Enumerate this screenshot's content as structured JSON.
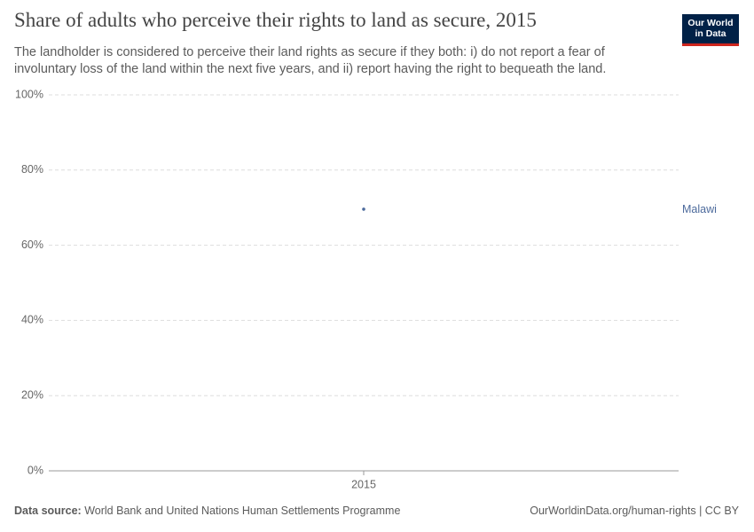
{
  "chart_data": {
    "type": "line",
    "title": "Share of adults who perceive their rights to land as secure, 2015",
    "subtitle": "The landholder is considered to perceive their land rights as secure if they both: i) do not report a fear of involuntary loss of the land within the next five years, and ii) report having the right to bequeath the land.",
    "categories": [
      "2015"
    ],
    "series": [
      {
        "name": "Malawi",
        "color": "#4c6a9c",
        "values": [
          69.6
        ]
      }
    ],
    "ylim": [
      0,
      100
    ],
    "yticks": [
      {
        "value": 0,
        "label": "0%"
      },
      {
        "value": 20,
        "label": "20%"
      },
      {
        "value": 40,
        "label": "40%"
      },
      {
        "value": 60,
        "label": "60%"
      },
      {
        "value": 80,
        "label": "80%"
      },
      {
        "value": 100,
        "label": "100%"
      }
    ],
    "grid": true,
    "source_label": "Data source:",
    "source": "World Bank and United Nations Human Settlements Programme",
    "url": "OurWorldinData.org/human-rights | CC BY",
    "logo": [
      "Our World",
      "in Data"
    ]
  }
}
